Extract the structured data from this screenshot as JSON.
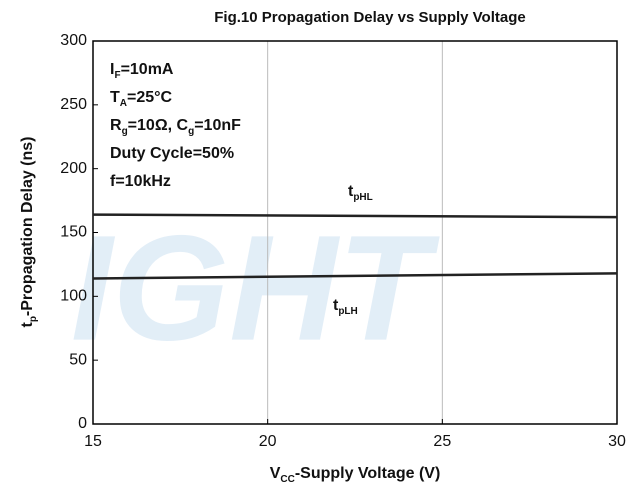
{
  "chart_data": {
    "type": "line",
    "title": "Fig.10 Propagation Delay vs Supply Voltage",
    "x_label": [
      "V",
      "CC",
      "-Supply Voltage (V)"
    ],
    "y_label": [
      "t",
      "p",
      "-Propagation Delay (ns)"
    ],
    "annotations": [
      [
        "I",
        "F",
        "=10mA"
      ],
      [
        "T",
        "A",
        "=25°C"
      ],
      [
        "R",
        "g",
        "=10Ω, C",
        "g",
        "=10nF"
      ],
      [
        "Duty Cycle=50%"
      ],
      [
        "f=10kHz"
      ]
    ],
    "watermark": "IGHT",
    "x": [
      15,
      30
    ],
    "series": [
      {
        "name": [
          "t",
          "pHL"
        ],
        "color": "#222222",
        "values": [
          164,
          162
        ]
      },
      {
        "name": [
          "t",
          "pLH"
        ],
        "color": "#222222",
        "values": [
          114,
          118
        ]
      }
    ],
    "xlim": [
      15,
      30
    ],
    "xticks": [
      15,
      20,
      25,
      30
    ],
    "ylim": [
      0,
      300
    ],
    "yticks": [
      0,
      50,
      100,
      150,
      200,
      250,
      300
    ],
    "grid": "x"
  }
}
